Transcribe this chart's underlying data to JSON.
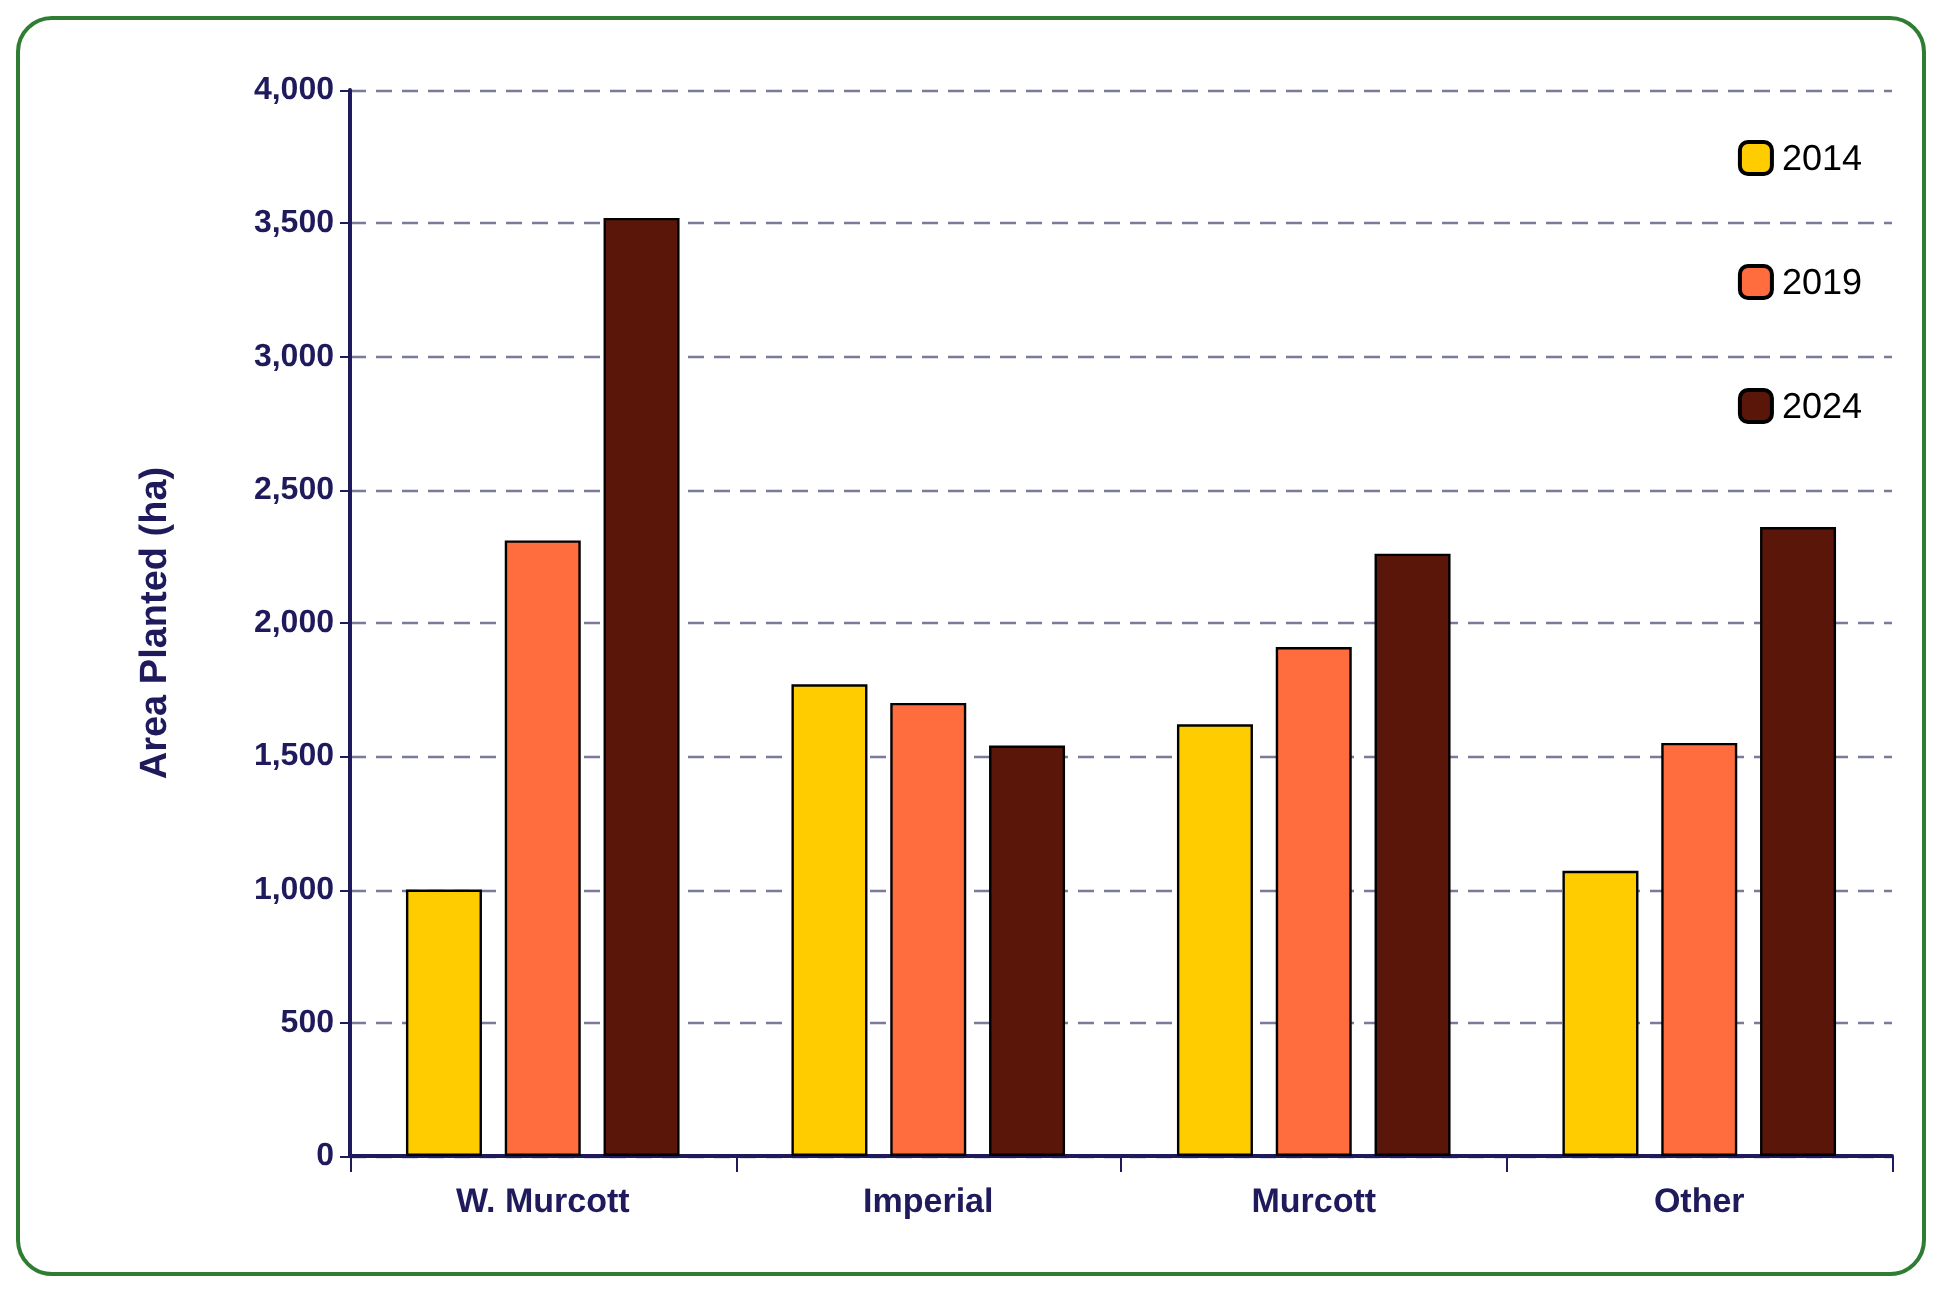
{
  "chart_data": {
    "type": "bar",
    "ylabel": "Area Planted (ha)",
    "categories": [
      "W. Murcott",
      "Imperial",
      "Murcott",
      "Other"
    ],
    "series": [
      {
        "name": "2014",
        "color": "#ffcc00",
        "values": [
          1000,
          1770,
          1620,
          1070
        ]
      },
      {
        "name": "2019",
        "color": "#ff6d3f",
        "values": [
          2310,
          1700,
          1910,
          1550
        ]
      },
      {
        "name": "2024",
        "color": "#5a1608",
        "values": [
          3520,
          1540,
          2260,
          2360
        ]
      }
    ],
    "ylim": [
      0,
      4000
    ],
    "yticks": [
      0,
      500,
      {
        "value": 1000,
        "label": "1,000"
      },
      {
        "value": 1500,
        "label": "1,500"
      },
      {
        "value": 2000,
        "label": "2,000"
      },
      {
        "value": 2500,
        "label": "2,500"
      },
      {
        "value": 3000,
        "label": "3,000"
      },
      {
        "value": 3500,
        "label": "3,500"
      },
      {
        "value": 4000,
        "label": "4,000"
      }
    ],
    "grid": "y",
    "legend": "top right"
  }
}
